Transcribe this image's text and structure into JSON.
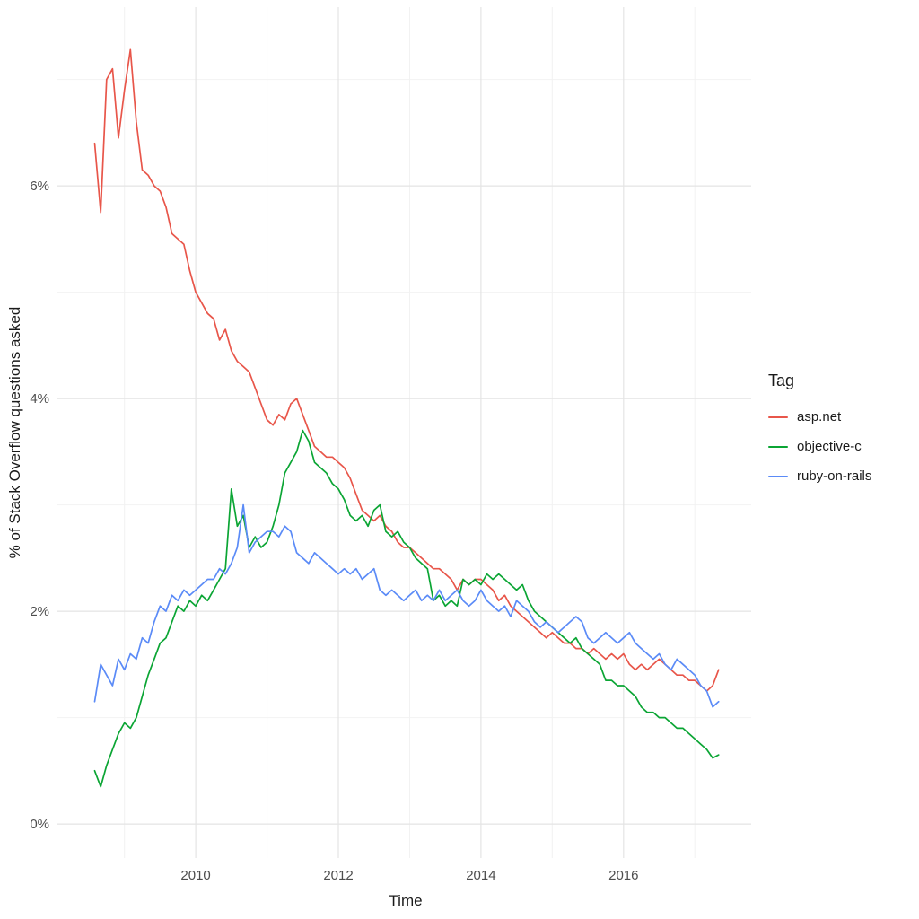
{
  "legend": {
    "title": "Tag",
    "position": "right"
  },
  "chart_data": {
    "type": "line",
    "title": "",
    "xlabel": "Time",
    "ylabel": "% of Stack Overflow questions asked",
    "grid": true,
    "x_domain": [
      2008.06,
      2017.79
    ],
    "y_domain": [
      -0.32,
      7.68
    ],
    "x_ticks": [
      {
        "value": 2010,
        "label": "2010"
      },
      {
        "value": 2012,
        "label": "2012"
      },
      {
        "value": 2014,
        "label": "2014"
      },
      {
        "value": 2016,
        "label": "2016"
      }
    ],
    "x_minor": [
      2009,
      2011,
      2013,
      2015,
      2017
    ],
    "y_ticks": [
      {
        "value": 0,
        "label": "0%"
      },
      {
        "value": 2,
        "label": "2%"
      },
      {
        "value": 4,
        "label": "4%"
      },
      {
        "value": 6,
        "label": "6%"
      }
    ],
    "y_minor": [
      1,
      3,
      5,
      7
    ],
    "x_start": 2008.583,
    "x_step": 0.083333,
    "series": [
      {
        "name": "asp.net",
        "color": "#E8564A",
        "values": [
          6.4,
          5.75,
          7.0,
          7.1,
          6.45,
          6.9,
          7.28,
          6.6,
          6.15,
          6.1,
          6.0,
          5.95,
          5.8,
          5.55,
          5.5,
          5.45,
          5.2,
          5.0,
          4.9,
          4.8,
          4.75,
          4.55,
          4.65,
          4.45,
          4.35,
          4.3,
          4.25,
          4.1,
          3.95,
          3.8,
          3.75,
          3.85,
          3.8,
          3.95,
          4.0,
          3.85,
          3.7,
          3.55,
          3.5,
          3.45,
          3.45,
          3.4,
          3.35,
          3.25,
          3.1,
          2.95,
          2.9,
          2.85,
          2.9,
          2.8,
          2.75,
          2.65,
          2.6,
          2.6,
          2.55,
          2.5,
          2.45,
          2.4,
          2.4,
          2.35,
          2.3,
          2.2,
          2.3,
          2.25,
          2.3,
          2.3,
          2.25,
          2.2,
          2.1,
          2.15,
          2.05,
          2.0,
          1.95,
          1.9,
          1.85,
          1.8,
          1.75,
          1.8,
          1.75,
          1.7,
          1.7,
          1.65,
          1.65,
          1.6,
          1.65,
          1.6,
          1.55,
          1.6,
          1.55,
          1.6,
          1.5,
          1.45,
          1.5,
          1.45,
          1.5,
          1.55,
          1.5,
          1.45,
          1.4,
          1.4,
          1.35,
          1.35,
          1.3,
          1.25,
          1.3,
          1.45
        ]
      },
      {
        "name": "objective-c",
        "color": "#0BA534",
        "values": [
          0.5,
          0.35,
          0.55,
          0.7,
          0.85,
          0.95,
          0.9,
          1.0,
          1.2,
          1.4,
          1.55,
          1.7,
          1.75,
          1.9,
          2.05,
          2.0,
          2.1,
          2.05,
          2.15,
          2.1,
          2.2,
          2.3,
          2.4,
          3.15,
          2.8,
          2.9,
          2.6,
          2.7,
          2.6,
          2.65,
          2.8,
          3.0,
          3.3,
          3.4,
          3.5,
          3.7,
          3.6,
          3.4,
          3.35,
          3.3,
          3.2,
          3.15,
          3.05,
          2.9,
          2.85,
          2.9,
          2.8,
          2.95,
          3.0,
          2.75,
          2.7,
          2.75,
          2.65,
          2.6,
          2.5,
          2.45,
          2.4,
          2.1,
          2.15,
          2.05,
          2.1,
          2.05,
          2.3,
          2.25,
          2.3,
          2.25,
          2.35,
          2.3,
          2.35,
          2.3,
          2.25,
          2.2,
          2.25,
          2.1,
          2.0,
          1.95,
          1.9,
          1.85,
          1.8,
          1.75,
          1.7,
          1.75,
          1.65,
          1.6,
          1.55,
          1.5,
          1.35,
          1.35,
          1.3,
          1.3,
          1.25,
          1.2,
          1.1,
          1.05,
          1.05,
          1.0,
          1.0,
          0.95,
          0.9,
          0.9,
          0.85,
          0.8,
          0.75,
          0.7,
          0.62,
          0.65
        ]
      },
      {
        "name": "ruby-on-rails",
        "color": "#5B8BF7",
        "values": [
          1.15,
          1.5,
          1.4,
          1.3,
          1.55,
          1.45,
          1.6,
          1.55,
          1.75,
          1.7,
          1.9,
          2.05,
          2.0,
          2.15,
          2.1,
          2.2,
          2.15,
          2.2,
          2.25,
          2.3,
          2.3,
          2.4,
          2.35,
          2.45,
          2.6,
          3.0,
          2.55,
          2.65,
          2.7,
          2.75,
          2.75,
          2.7,
          2.8,
          2.75,
          2.55,
          2.5,
          2.45,
          2.55,
          2.5,
          2.45,
          2.4,
          2.35,
          2.4,
          2.35,
          2.4,
          2.3,
          2.35,
          2.4,
          2.2,
          2.15,
          2.2,
          2.15,
          2.1,
          2.15,
          2.2,
          2.1,
          2.15,
          2.1,
          2.2,
          2.1,
          2.15,
          2.2,
          2.1,
          2.05,
          2.1,
          2.2,
          2.1,
          2.05,
          2.0,
          2.05,
          1.95,
          2.1,
          2.05,
          2.0,
          1.9,
          1.85,
          1.9,
          1.85,
          1.8,
          1.85,
          1.9,
          1.95,
          1.9,
          1.75,
          1.7,
          1.75,
          1.8,
          1.75,
          1.7,
          1.75,
          1.8,
          1.7,
          1.65,
          1.6,
          1.55,
          1.6,
          1.5,
          1.45,
          1.55,
          1.5,
          1.45,
          1.4,
          1.3,
          1.25,
          1.1,
          1.15
        ]
      }
    ]
  }
}
